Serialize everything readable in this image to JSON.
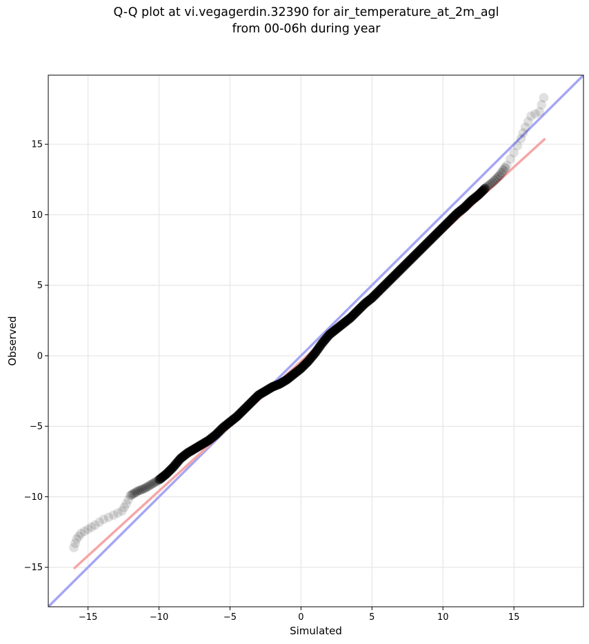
{
  "chart_data": {
    "type": "scatter",
    "title": "Q-Q plot at vi.vegagerdin.32390 for air_temperature_at_2m_agl",
    "subtitle": "from 00-06h during year",
    "xlabel": "Simulated",
    "ylabel": "Observed",
    "xlim": [
      -17.8,
      19.9
    ],
    "ylim": [
      -17.8,
      19.9
    ],
    "xticks": [
      -15,
      -10,
      -5,
      0,
      5,
      10,
      15
    ],
    "yticks": [
      -15,
      -10,
      -5,
      0,
      5,
      10,
      15
    ],
    "xtick_labels": [
      "−15",
      "−10",
      "−5",
      "0",
      "5",
      "10",
      "15"
    ],
    "ytick_labels": [
      "−15",
      "−10",
      "−5",
      "0",
      "5",
      "10",
      "15"
    ],
    "grid": true,
    "reference_lines": [
      {
        "kind": "one-to-one",
        "color": "#a6a6f5",
        "points": [
          [
            -17.8,
            -17.8
          ],
          [
            19.9,
            19.9
          ]
        ]
      },
      {
        "kind": "fit",
        "color": "#f5a6a6",
        "points": [
          [
            -16.0,
            -15.1
          ],
          [
            17.2,
            15.4
          ]
        ]
      }
    ],
    "quantile_curve": [
      [
        -16.0,
        -13.6
      ],
      [
        -15.8,
        -13.0
      ],
      [
        -15.5,
        -12.6
      ],
      [
        -15.0,
        -12.3
      ],
      [
        -14.5,
        -12.0
      ],
      [
        -13.9,
        -11.6
      ],
      [
        -13.2,
        -11.3
      ],
      [
        -12.6,
        -11.0
      ],
      [
        -12.3,
        -10.5
      ],
      [
        -12.0,
        -9.9
      ],
      [
        -11.5,
        -9.6
      ],
      [
        -11.0,
        -9.4
      ],
      [
        -10.5,
        -9.1
      ],
      [
        -10.0,
        -8.8
      ],
      [
        -9.5,
        -8.4
      ],
      [
        -9.0,
        -7.9
      ],
      [
        -8.5,
        -7.3
      ],
      [
        -8.0,
        -6.9
      ],
      [
        -7.5,
        -6.6
      ],
      [
        -7.0,
        -6.3
      ],
      [
        -6.5,
        -6.0
      ],
      [
        -6.0,
        -5.6
      ],
      [
        -5.5,
        -5.1
      ],
      [
        -5.0,
        -4.7
      ],
      [
        -4.5,
        -4.3
      ],
      [
        -4.0,
        -3.8
      ],
      [
        -3.5,
        -3.3
      ],
      [
        -3.0,
        -2.8
      ],
      [
        -2.5,
        -2.5
      ],
      [
        -2.0,
        -2.2
      ],
      [
        -1.5,
        -2.0
      ],
      [
        -1.0,
        -1.7
      ],
      [
        -0.5,
        -1.3
      ],
      [
        0.0,
        -0.9
      ],
      [
        0.5,
        -0.4
      ],
      [
        1.0,
        0.2
      ],
      [
        1.5,
        0.9
      ],
      [
        2.0,
        1.5
      ],
      [
        2.5,
        1.9
      ],
      [
        3.0,
        2.3
      ],
      [
        3.5,
        2.7
      ],
      [
        4.0,
        3.2
      ],
      [
        4.5,
        3.7
      ],
      [
        5.0,
        4.1
      ],
      [
        5.5,
        4.6
      ],
      [
        6.0,
        5.1
      ],
      [
        6.5,
        5.6
      ],
      [
        7.0,
        6.1
      ],
      [
        7.5,
        6.6
      ],
      [
        8.0,
        7.1
      ],
      [
        8.5,
        7.6
      ],
      [
        9.0,
        8.1
      ],
      [
        9.5,
        8.6
      ],
      [
        10.0,
        9.1
      ],
      [
        10.5,
        9.6
      ],
      [
        11.0,
        10.1
      ],
      [
        11.5,
        10.5
      ],
      [
        12.0,
        11.0
      ],
      [
        12.5,
        11.4
      ],
      [
        13.0,
        11.9
      ],
      [
        13.5,
        12.3
      ],
      [
        14.0,
        12.8
      ],
      [
        14.5,
        13.5
      ],
      [
        15.0,
        14.4
      ],
      [
        15.5,
        15.4
      ],
      [
        15.8,
        16.2
      ],
      [
        16.2,
        17.0
      ],
      [
        16.8,
        17.3
      ],
      [
        17.1,
        18.3
      ]
    ]
  }
}
